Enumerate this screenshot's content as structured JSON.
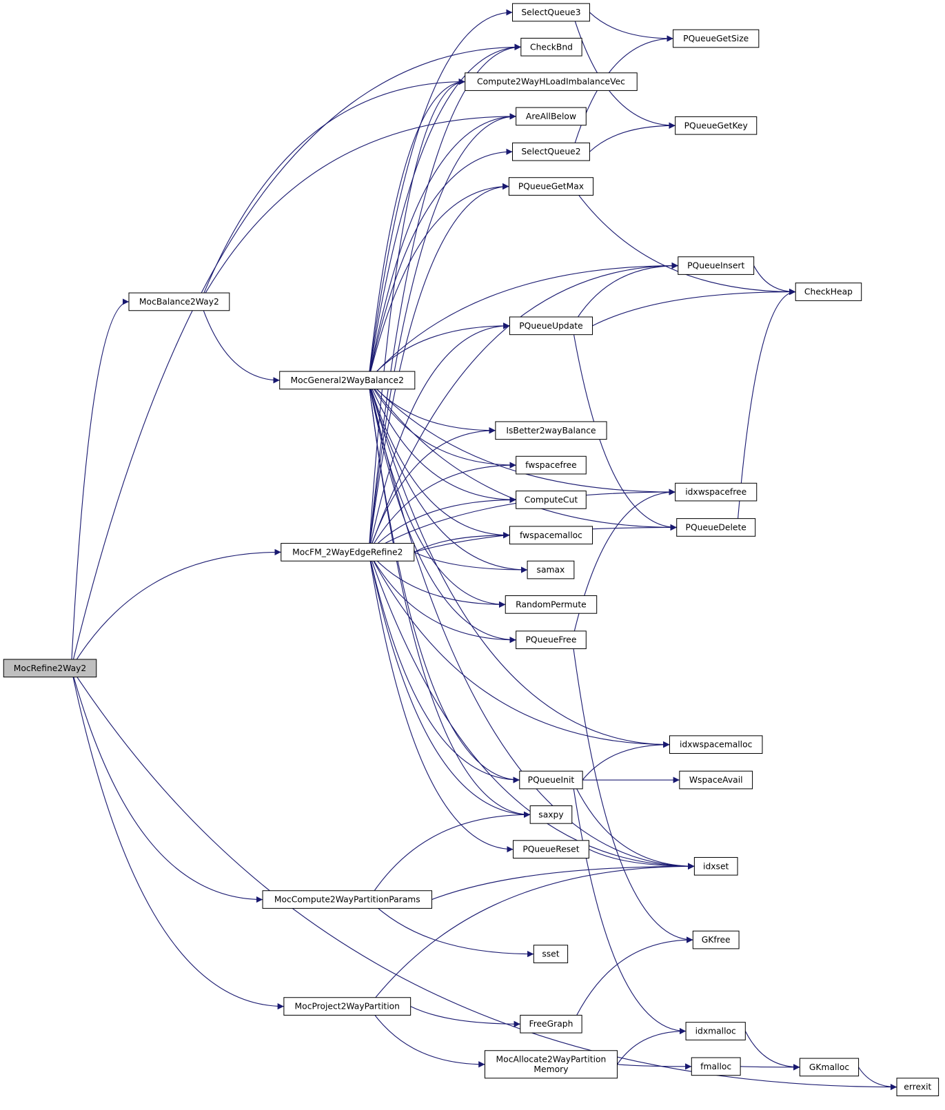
{
  "graph": {
    "root": "MocRefine2Way2",
    "colors": {
      "edge": "#191970",
      "root_fill": "#bfbfbf",
      "node_fill": "#ffffff",
      "border": "#000000"
    },
    "nodes": [
      {
        "id": "MocRefine2Way2",
        "label": "MocRefine2Way2"
      },
      {
        "id": "MocBalance2Way2",
        "label": "MocBalance2Way2"
      },
      {
        "id": "MocGeneral2WayBalance2",
        "label": "MocGeneral2WayBalance2"
      },
      {
        "id": "MocFM_2WayEdgeRefine2",
        "label": "MocFM_2WayEdgeRefine2"
      },
      {
        "id": "MocCompute2WayPartitionParams",
        "label": "MocCompute2WayPartitionParams"
      },
      {
        "id": "MocProject2WayPartition",
        "label": "MocProject2WayPartition"
      },
      {
        "id": "SelectQueue3",
        "label": "SelectQueue3"
      },
      {
        "id": "CheckBnd",
        "label": "CheckBnd"
      },
      {
        "id": "Compute2WayHLoadImbalanceVec",
        "label": "Compute2WayHLoadImbalanceVec"
      },
      {
        "id": "AreAllBelow",
        "label": "AreAllBelow"
      },
      {
        "id": "SelectQueue2",
        "label": "SelectQueue2"
      },
      {
        "id": "PQueueGetMax",
        "label": "PQueueGetMax"
      },
      {
        "id": "PQueueUpdate",
        "label": "PQueueUpdate"
      },
      {
        "id": "IsBetter2wayBalance",
        "label": "IsBetter2wayBalance"
      },
      {
        "id": "fwspacefree",
        "label": "fwspacefree"
      },
      {
        "id": "ComputeCut",
        "label": "ComputeCut"
      },
      {
        "id": "fwspacemalloc",
        "label": "fwspacemalloc"
      },
      {
        "id": "samax",
        "label": "samax"
      },
      {
        "id": "RandomPermute",
        "label": "RandomPermute"
      },
      {
        "id": "PQueueFree",
        "label": "PQueueFree"
      },
      {
        "id": "PQueueInit",
        "label": "PQueueInit"
      },
      {
        "id": "saxpy",
        "label": "saxpy"
      },
      {
        "id": "PQueueReset",
        "label": "PQueueReset"
      },
      {
        "id": "sset",
        "label": "sset"
      },
      {
        "id": "FreeGraph",
        "label": "FreeGraph"
      },
      {
        "id": "MocAllocate2WayPartitionMemory",
        "label": "MocAllocate2WayPartition\nMemory"
      },
      {
        "id": "PQueueGetSize",
        "label": "PQueueGetSize"
      },
      {
        "id": "PQueueGetKey",
        "label": "PQueueGetKey"
      },
      {
        "id": "PQueueInsert",
        "label": "PQueueInsert"
      },
      {
        "id": "idxwspacefree",
        "label": "idxwspacefree"
      },
      {
        "id": "PQueueDelete",
        "label": "PQueueDelete"
      },
      {
        "id": "idxwspacemalloc",
        "label": "idxwspacemalloc"
      },
      {
        "id": "WspaceAvail",
        "label": "WspaceAvail"
      },
      {
        "id": "idxset",
        "label": "idxset"
      },
      {
        "id": "GKfree",
        "label": "GKfree"
      },
      {
        "id": "idxmalloc",
        "label": "idxmalloc"
      },
      {
        "id": "fmalloc",
        "label": "fmalloc"
      },
      {
        "id": "CheckHeap",
        "label": "CheckHeap"
      },
      {
        "id": "GKmalloc",
        "label": "GKmalloc"
      },
      {
        "id": "errexit",
        "label": "errexit"
      }
    ],
    "edges": [
      [
        "MocRefine2Way2",
        "CheckBnd"
      ],
      [
        "MocRefine2Way2",
        "MocBalance2Way2"
      ],
      [
        "MocRefine2Way2",
        "MocFM_2WayEdgeRefine2"
      ],
      [
        "MocRefine2Way2",
        "MocCompute2WayPartitionParams"
      ],
      [
        "MocRefine2Way2",
        "MocProject2WayPartition"
      ],
      [
        "MocRefine2Way2",
        "errexit"
      ],
      [
        "MocBalance2Way2",
        "Compute2WayHLoadImbalanceVec"
      ],
      [
        "MocBalance2Way2",
        "AreAllBelow"
      ],
      [
        "MocBalance2Way2",
        "MocGeneral2WayBalance2"
      ],
      [
        "MocGeneral2WayBalance2",
        "SelectQueue3"
      ],
      [
        "MocGeneral2WayBalance2",
        "CheckBnd"
      ],
      [
        "MocGeneral2WayBalance2",
        "Compute2WayHLoadImbalanceVec"
      ],
      [
        "MocGeneral2WayBalance2",
        "AreAllBelow"
      ],
      [
        "MocGeneral2WayBalance2",
        "SelectQueue2"
      ],
      [
        "MocGeneral2WayBalance2",
        "PQueueGetMax"
      ],
      [
        "MocGeneral2WayBalance2",
        "PQueueInsert"
      ],
      [
        "MocGeneral2WayBalance2",
        "idxwspacefree"
      ],
      [
        "MocGeneral2WayBalance2",
        "PQueueUpdate"
      ],
      [
        "MocGeneral2WayBalance2",
        "PQueueDelete"
      ],
      [
        "MocGeneral2WayBalance2",
        "idxset"
      ],
      [
        "MocGeneral2WayBalance2",
        "idxwspacemalloc"
      ],
      [
        "MocGeneral2WayBalance2",
        "IsBetter2wayBalance"
      ],
      [
        "MocGeneral2WayBalance2",
        "fwspacefree"
      ],
      [
        "MocGeneral2WayBalance2",
        "ComputeCut"
      ],
      [
        "MocGeneral2WayBalance2",
        "fwspacemalloc"
      ],
      [
        "MocGeneral2WayBalance2",
        "samax"
      ],
      [
        "MocGeneral2WayBalance2",
        "RandomPermute"
      ],
      [
        "MocGeneral2WayBalance2",
        "PQueueFree"
      ],
      [
        "MocGeneral2WayBalance2",
        "PQueueInit"
      ],
      [
        "MocGeneral2WayBalance2",
        "saxpy"
      ],
      [
        "MocFM_2WayEdgeRefine2",
        "CheckBnd"
      ],
      [
        "MocFM_2WayEdgeRefine2",
        "Compute2WayHLoadImbalanceVec"
      ],
      [
        "MocFM_2WayEdgeRefine2",
        "AreAllBelow"
      ],
      [
        "MocFM_2WayEdgeRefine2",
        "PQueueGetMax"
      ],
      [
        "MocFM_2WayEdgeRefine2",
        "PQueueInsert"
      ],
      [
        "MocFM_2WayEdgeRefine2",
        "PQueueUpdate"
      ],
      [
        "MocFM_2WayEdgeRefine2",
        "IsBetter2wayBalance"
      ],
      [
        "MocFM_2WayEdgeRefine2",
        "fwspacefree"
      ],
      [
        "MocFM_2WayEdgeRefine2",
        "ComputeCut"
      ],
      [
        "MocFM_2WayEdgeRefine2",
        "fwspacemalloc"
      ],
      [
        "MocFM_2WayEdgeRefine2",
        "samax"
      ],
      [
        "MocFM_2WayEdgeRefine2",
        "RandomPermute"
      ],
      [
        "MocFM_2WayEdgeRefine2",
        "PQueueFree"
      ],
      [
        "MocFM_2WayEdgeRefine2",
        "idxwspacefree"
      ],
      [
        "MocFM_2WayEdgeRefine2",
        "PQueueDelete"
      ],
      [
        "MocFM_2WayEdgeRefine2",
        "idxwspacemalloc"
      ],
      [
        "MocFM_2WayEdgeRefine2",
        "PQueueInit"
      ],
      [
        "MocFM_2WayEdgeRefine2",
        "saxpy"
      ],
      [
        "MocFM_2WayEdgeRefine2",
        "PQueueReset"
      ],
      [
        "MocFM_2WayEdgeRefine2",
        "idxset"
      ],
      [
        "MocCompute2WayPartitionParams",
        "saxpy"
      ],
      [
        "MocCompute2WayPartitionParams",
        "idxset"
      ],
      [
        "MocCompute2WayPartitionParams",
        "sset"
      ],
      [
        "MocProject2WayPartition",
        "idxset"
      ],
      [
        "MocProject2WayPartition",
        "FreeGraph"
      ],
      [
        "MocProject2WayPartition",
        "MocAllocate2WayPartitionMemory"
      ],
      [
        "SelectQueue3",
        "PQueueGetSize"
      ],
      [
        "SelectQueue3",
        "PQueueGetKey"
      ],
      [
        "SelectQueue2",
        "PQueueGetSize"
      ],
      [
        "SelectQueue2",
        "PQueueGetKey"
      ],
      [
        "PQueueGetMax",
        "CheckHeap"
      ],
      [
        "PQueueInsert",
        "CheckHeap"
      ],
      [
        "PQueueUpdate",
        "PQueueInsert"
      ],
      [
        "PQueueUpdate",
        "CheckHeap"
      ],
      [
        "PQueueUpdate",
        "PQueueDelete"
      ],
      [
        "PQueueDelete",
        "CheckHeap"
      ],
      [
        "PQueueFree",
        "idxwspacefree"
      ],
      [
        "PQueueFree",
        "GKfree"
      ],
      [
        "PQueueInit",
        "idxwspacemalloc"
      ],
      [
        "PQueueInit",
        "WspaceAvail"
      ],
      [
        "PQueueInit",
        "idxset"
      ],
      [
        "PQueueInit",
        "idxmalloc"
      ],
      [
        "PQueueReset",
        "idxset"
      ],
      [
        "FreeGraph",
        "GKfree"
      ],
      [
        "MocAllocate2WayPartitionMemory",
        "idxmalloc"
      ],
      [
        "MocAllocate2WayPartitionMemory",
        "fmalloc"
      ],
      [
        "idxmalloc",
        "GKmalloc"
      ],
      [
        "fmalloc",
        "GKmalloc"
      ],
      [
        "GKmalloc",
        "errexit"
      ]
    ]
  }
}
